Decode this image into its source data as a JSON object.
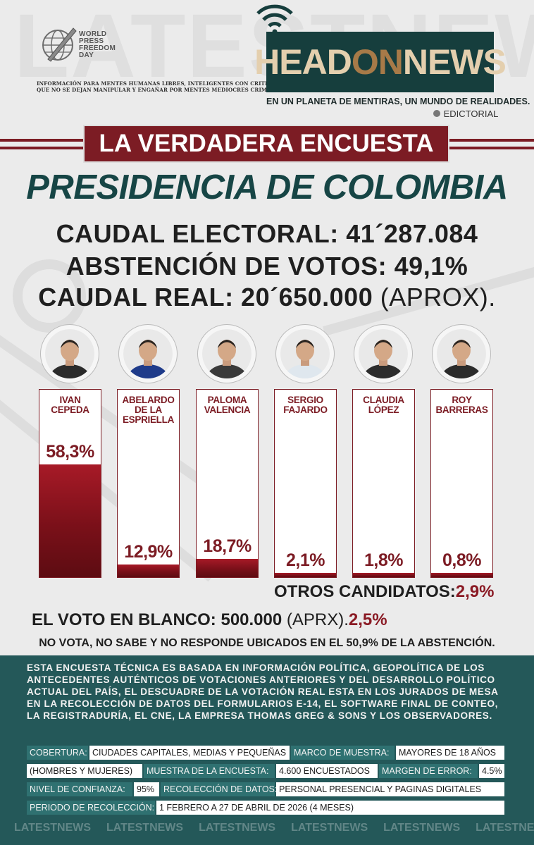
{
  "header": {
    "watermark": "LATESTNEWS",
    "wpfd_lines": [
      "WORLD",
      "PRESS",
      "FREEDOM",
      "DAY"
    ],
    "tagline": [
      "INFORMACIÓN PARA MENTES HUMANAS LIBRES, INTELIGENTES CON CRITERIO",
      "QUE NO SE DEJAN MANIPULAR Y ENGAÑAR POR MENTES MEDIOCRES CRIMINALES"
    ],
    "brand_head": "HEAD",
    "brand_on": "ON",
    "brand_news": "NEWS",
    "slogan": "EN UN PLANETA DE MENTIRAS, UN MUNDO DE REALIDADES.",
    "edictorial": "EDICTORIAL"
  },
  "banner": "LA VERDADERA ENCUESTA",
  "chart_data": {
    "type": "bar",
    "title": "PRESIDENCIA DE COLOMBIA",
    "categories": [
      "IVAN\nCEPEDA",
      "ABELARDO\nDE LA\nESPRIELLA",
      "PALOMA\nVALENCIA",
      "SERGIO\nFAJARDO",
      "CLAUDIA\nLÓPEZ",
      "ROY\nBARRERAS"
    ],
    "values": [
      58.3,
      12.9,
      18.7,
      2.1,
      1.8,
      0.8
    ],
    "value_labels": [
      "58,3%",
      "12,9%",
      "18,7%",
      "2,1%",
      "1,8%",
      "0,8%"
    ],
    "ylim": [
      0,
      100
    ],
    "colors": {
      "bar": "#8a1522",
      "frame": "#7c1c24"
    }
  },
  "stats": {
    "caudal_electoral": "CAUDAL ELECTORAL: 41´287.084",
    "abstencion": "ABSTENCIÓN DE VOTOS: 49,1%",
    "caudal_real": "CAUDAL REAL: 20´650.000",
    "caudal_real_note": "(APROX)."
  },
  "otros": {
    "label": "OTROS CANDIDATOS:",
    "value": "2,9%"
  },
  "blanco": {
    "label": "EL VOTO EN BLANCO: 500.000",
    "note": "(APRX).",
    "value": "2,5%"
  },
  "no_vota": "NO VOTA, NO SABE Y NO RESPONDE UBICADOS EN EL 50,9% DE LA ABSTENCIÓN.",
  "description": [
    "ESTA ENCUESTA TÉCNICA ES BASADA EN INFORMACIÓN POLÍTICA, GEOPOLÍTICA DE LOS",
    "ANTECEDENTES AUTÉNTICOS DE VOTACIONES ANTERIORES Y DEL DESARROLLO POLÍTICO",
    "ACTUAL DEL PAÍS, EL DESCUADRE DE LA VOTACIÓN REAL ESTA EN LOS JURADOS DE MESA",
    "EN LA RECOLECCIÓN DE DATOS DEL FORMULARIOS E-14, EL SOFTWARE FINAL DE CONTEO,",
    "LA REGISTRADURÍA, EL CNE, LA EMPRESA THOMAS GREG & SONS Y LOS OBSERVADORES."
  ],
  "details": {
    "cobertura_label": "COBERTURA:",
    "cobertura_value": "CIUDADES CAPITALES, MEDIAS Y PEQUEÑAS",
    "marco_label": "MARCO DE MUESTRA:",
    "marco_value": "MAYORES DE 18 AÑOS",
    "marco_value2": "(HOMBRES Y MUJERES)",
    "muestra_label": "MUESTRA DE LA ENCUESTA:",
    "muestra_value": "4.600 ENCUESTADOS",
    "margen_label": "MARGEN DE ERROR:",
    "margen_value": "4.5%",
    "confianza_label": "NIVEL DE CONFIANZA:",
    "confianza_value": "95%",
    "recoleccion_label": "RECOLECCIÓN DE DATOS:",
    "recoleccion_value": "PERSONAL PRESENCIAL Y PAGINAS DIGITALES",
    "periodo_label": "PERIODO DE RECOLECCIÓN:",
    "periodo_value": "1 FEBRERO A 27 DE ABRIL DE 2026 (4 MESES)"
  },
  "footer_watermark": "LATESTNEWS"
}
